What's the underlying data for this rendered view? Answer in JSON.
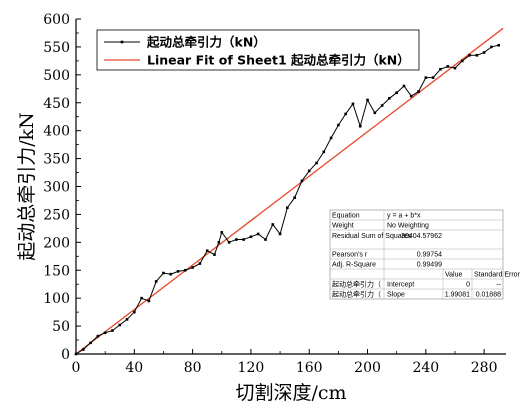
{
  "chart_data": {
    "type": "line",
    "xlabel": "切割深度/cm",
    "ylabel": "起动总牵引力/kN",
    "xlim": [
      0,
      295
    ],
    "ylim": [
      0,
      600
    ],
    "x_ticks": [
      "0",
      "40",
      "80",
      "120",
      "160",
      "200",
      "240",
      "280"
    ],
    "x_tick_values": [
      0,
      40,
      80,
      120,
      160,
      200,
      240,
      280
    ],
    "y_ticks": [
      "0",
      "50",
      "100",
      "150",
      "200",
      "250",
      "300",
      "350",
      "400",
      "450",
      "500",
      "550",
      "600"
    ],
    "y_tick_values": [
      0,
      50,
      100,
      150,
      200,
      250,
      300,
      350,
      400,
      450,
      500,
      550,
      600
    ],
    "series": [
      {
        "name": "起动总牵引力（kN）",
        "color": "#000000",
        "marker": "square",
        "x": [
          0,
          5,
          10,
          15,
          20,
          25,
          30,
          35,
          40,
          45,
          50,
          55,
          60,
          65,
          70,
          75,
          80,
          85,
          90,
          95,
          98,
          100,
          105,
          110,
          115,
          120,
          125,
          130,
          135,
          140,
          145,
          150,
          155,
          160,
          165,
          170,
          175,
          180,
          185,
          190,
          195,
          200,
          205,
          210,
          215,
          220,
          225,
          230,
          235,
          240,
          245,
          250,
          255,
          260,
          265,
          270,
          275,
          280,
          285,
          290
        ],
        "y": [
          0,
          8,
          20,
          32,
          38,
          42,
          52,
          62,
          75,
          100,
          95,
          130,
          145,
          143,
          148,
          150,
          155,
          162,
          185,
          178,
          200,
          218,
          200,
          205,
          205,
          210,
          215,
          205,
          232,
          215,
          262,
          280,
          310,
          328,
          342,
          362,
          387,
          410,
          430,
          448,
          408,
          455,
          432,
          445,
          458,
          468,
          480,
          462,
          470,
          495,
          495,
          510,
          515,
          512,
          525,
          535,
          535,
          540,
          550,
          553
        ]
      },
      {
        "name": "Linear Fit of Sheet1 起动总牵引力（kN）",
        "color": "#e8472c",
        "fit": {
          "intercept": 0,
          "slope": 1.99081
        },
        "x": [
          0,
          293
        ],
        "y": [
          0,
          583.3
        ]
      }
    ],
    "legend": {
      "position": "top-left",
      "entries": [
        "起动总牵引力（kN）",
        "Linear Fit of Sheet1 起动总牵引力（kN）"
      ]
    },
    "stats_table": {
      "rows": [
        [
          "Equation",
          "y = a + b*x",
          "",
          ""
        ],
        [
          "Weight",
          "No Weighting",
          "",
          ""
        ],
        [
          "Residual Sum of Squares",
          "30404.57962",
          "",
          ""
        ],
        [
          "Pearson's r",
          "0.99754",
          "",
          ""
        ],
        [
          "Adj. R-Square",
          "0.99499",
          "",
          ""
        ],
        [
          "",
          "",
          "Value",
          "Standard Error"
        ],
        [
          "起动总牵引力（",
          "Intercept",
          "0",
          "--"
        ],
        [
          "起动总牵引力（",
          "Slope",
          "1.99081",
          "0.01888"
        ]
      ]
    }
  }
}
